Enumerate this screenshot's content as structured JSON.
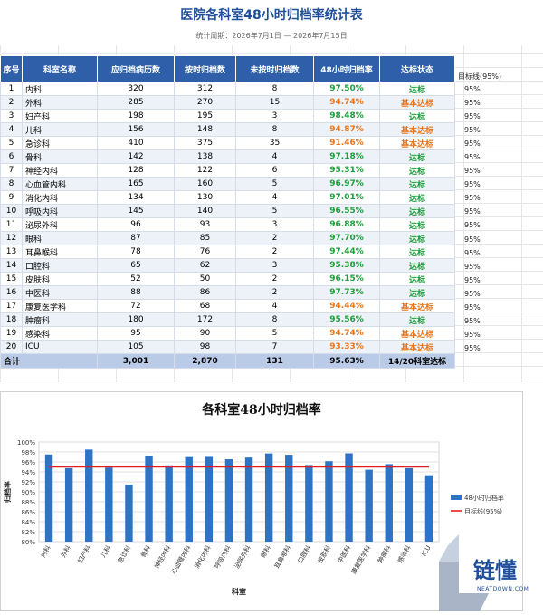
{
  "title": "医院各科室48小时归档率统计表",
  "subtitle": "统计周期：2026年7月1日 — 2026年7月15日",
  "table": {
    "headers": [
      "序号",
      "科室名称",
      "应归档病历数",
      "按时归档数",
      "未按时归档数",
      "48小时归档率",
      "达标状态"
    ],
    "rows": [
      {
        "no": "1",
        "dept": "内科",
        "total": "320",
        "ontime": "312",
        "late": "8",
        "rate": "97.50%",
        "status": "达标"
      },
      {
        "no": "2",
        "dept": "外科",
        "total": "285",
        "ontime": "270",
        "late": "15",
        "rate": "94.74%",
        "status": "基本达标"
      },
      {
        "no": "3",
        "dept": "妇产科",
        "total": "198",
        "ontime": "195",
        "late": "3",
        "rate": "98.48%",
        "status": "达标"
      },
      {
        "no": "4",
        "dept": "儿科",
        "total": "156",
        "ontime": "148",
        "late": "8",
        "rate": "94.87%",
        "status": "基本达标"
      },
      {
        "no": "5",
        "dept": "急诊科",
        "total": "410",
        "ontime": "375",
        "late": "35",
        "rate": "91.46%",
        "status": "基本达标"
      },
      {
        "no": "6",
        "dept": "骨科",
        "total": "142",
        "ontime": "138",
        "late": "4",
        "rate": "97.18%",
        "status": "达标"
      },
      {
        "no": "7",
        "dept": "神经内科",
        "total": "128",
        "ontime": "122",
        "late": "6",
        "rate": "95.31%",
        "status": "达标"
      },
      {
        "no": "8",
        "dept": "心血管内科",
        "total": "165",
        "ontime": "160",
        "late": "5",
        "rate": "96.97%",
        "status": "达标"
      },
      {
        "no": "9",
        "dept": "消化内科",
        "total": "134",
        "ontime": "130",
        "late": "4",
        "rate": "97.01%",
        "status": "达标"
      },
      {
        "no": "10",
        "dept": "呼吸内科",
        "total": "145",
        "ontime": "140",
        "late": "5",
        "rate": "96.55%",
        "status": "达标"
      },
      {
        "no": "11",
        "dept": "泌尿外科",
        "total": "96",
        "ontime": "93",
        "late": "3",
        "rate": "96.88%",
        "status": "达标"
      },
      {
        "no": "12",
        "dept": "眼科",
        "total": "87",
        "ontime": "85",
        "late": "2",
        "rate": "97.70%",
        "status": "达标"
      },
      {
        "no": "13",
        "dept": "耳鼻喉科",
        "total": "78",
        "ontime": "76",
        "late": "2",
        "rate": "97.44%",
        "status": "达标"
      },
      {
        "no": "14",
        "dept": "口腔科",
        "total": "65",
        "ontime": "62",
        "late": "3",
        "rate": "95.38%",
        "status": "达标"
      },
      {
        "no": "15",
        "dept": "皮肤科",
        "total": "52",
        "ontime": "50",
        "late": "2",
        "rate": "96.15%",
        "status": "达标"
      },
      {
        "no": "16",
        "dept": "中医科",
        "total": "88",
        "ontime": "86",
        "late": "2",
        "rate": "97.73%",
        "status": "达标"
      },
      {
        "no": "17",
        "dept": "康复医学科",
        "total": "72",
        "ontime": "68",
        "late": "4",
        "rate": "94.44%",
        "status": "基本达标"
      },
      {
        "no": "18",
        "dept": "肿瘤科",
        "total": "180",
        "ontime": "172",
        "late": "8",
        "rate": "95.56%",
        "status": "达标"
      },
      {
        "no": "19",
        "dept": "感染科",
        "total": "95",
        "ontime": "90",
        "late": "5",
        "rate": "94.74%",
        "status": "基本达标"
      },
      {
        "no": "20",
        "dept": "ICU",
        "total": "105",
        "ontime": "98",
        "late": "7",
        "rate": "93.33%",
        "status": "基本达标"
      }
    ],
    "total_row": {
      "label": "合计",
      "total": "3,001",
      "ontime": "2,870",
      "late": "131",
      "rate": "95.63%",
      "status": "14/20科室达标"
    }
  },
  "target_column": {
    "header": "目标线(95%)",
    "values": [
      "95%",
      "95%",
      "95%",
      "95%",
      "95%",
      "95%",
      "95%",
      "95%",
      "95%",
      "95%",
      "95%",
      "95%",
      "95%",
      "95%",
      "95%",
      "95%",
      "95%",
      "95%",
      "95%",
      "95%"
    ]
  },
  "colors": {
    "header_bg": "#2e5fa8",
    "title": "#1f4e9a",
    "pass": "#1e9e3a",
    "partial": "#e8761f",
    "bar": "#2e73c4",
    "target_line": "#e02020"
  },
  "chart_data": {
    "type": "bar",
    "title": "各科室48小时归档率",
    "xlabel": "科室",
    "ylabel": "归档率",
    "categories": [
      "内科",
      "外科",
      "妇产科",
      "儿科",
      "急诊科",
      "骨科",
      "神经内科",
      "心血管内科",
      "消化内科",
      "呼吸内科",
      "泌尿外科",
      "眼科",
      "耳鼻喉科",
      "口腔科",
      "皮肤科",
      "中医科",
      "康复医学科",
      "肿瘤科",
      "感染科",
      "ICU"
    ],
    "series": [
      {
        "name": "48小时归档率",
        "values": [
          97.5,
          94.74,
          98.48,
          94.87,
          91.46,
          97.18,
          95.31,
          96.97,
          97.01,
          96.55,
          96.88,
          97.7,
          97.44,
          95.38,
          96.15,
          97.73,
          94.44,
          95.56,
          94.74,
          93.33
        ]
      },
      {
        "name": "目标线(95%)",
        "type": "line",
        "values": [
          95,
          95,
          95,
          95,
          95,
          95,
          95,
          95,
          95,
          95,
          95,
          95,
          95,
          95,
          95,
          95,
          95,
          95,
          95,
          95
        ]
      }
    ],
    "ylim": [
      80,
      100
    ],
    "yticks": [
      "80%",
      "82%",
      "84%",
      "86%",
      "88%",
      "90%",
      "92%",
      "94%",
      "96%",
      "98%",
      "100%"
    ],
    "grid": true,
    "legend": "right"
  },
  "logo": {
    "text": "链懂",
    "sub": "NEATDOWN.COM"
  }
}
